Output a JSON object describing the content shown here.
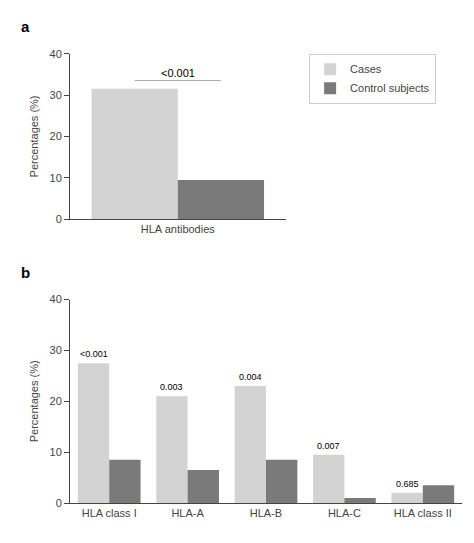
{
  "chart_data": [
    {
      "type": "bar",
      "title": "a",
      "categories": [
        "HLA antibodies"
      ],
      "series": [
        {
          "name": "Cases",
          "color": "#d3d3d3",
          "values": [
            31.5
          ]
        },
        {
          "name": "Control subjects",
          "color": "#7a7a7a",
          "values": [
            9.5
          ]
        }
      ],
      "ylabel": "Percentages (%)",
      "ylim": [
        0,
        40
      ],
      "yticks": [
        0,
        10,
        20,
        30,
        40
      ],
      "grid": false,
      "legend": "upper right",
      "annotations": [
        {
          "text": "<0.001",
          "y": 33.5
        }
      ]
    },
    {
      "type": "bar",
      "title": "b",
      "categories": [
        "HLA class I",
        "HLA-A",
        "HLA-B",
        "HLA-C",
        "HLA class II"
      ],
      "series": [
        {
          "name": "Cases",
          "color": "#d3d3d3",
          "values": [
            27.5,
            21.0,
            23.0,
            9.5,
            2.0
          ]
        },
        {
          "name": "Control subjects",
          "color": "#7a7a7a",
          "values": [
            8.5,
            6.5,
            8.5,
            1.0,
            3.5
          ]
        }
      ],
      "ylabel": "Percentages (%)",
      "ylim": [
        0,
        40
      ],
      "yticks": [
        0,
        10,
        20,
        30,
        40
      ],
      "grid": false,
      "annotations": [
        {
          "text": "<0.001",
          "category": "HLA class I",
          "series": "Cases"
        },
        {
          "text": "0.003",
          "category": "HLA-A",
          "series": "Cases"
        },
        {
          "text": "0.004",
          "category": "HLA-B",
          "series": "Cases"
        },
        {
          "text": "0.007",
          "category": "HLA-C",
          "series": "Cases"
        },
        {
          "text": "0.685",
          "category": "HLA class II",
          "series": "Cases"
        }
      ]
    }
  ]
}
